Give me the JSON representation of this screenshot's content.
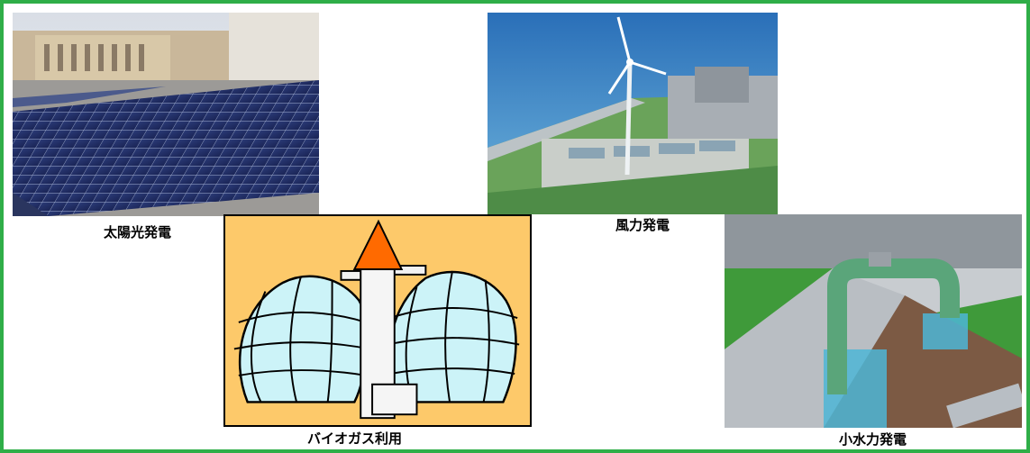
{
  "captions": {
    "solar": "太陽光発電",
    "wind": "風力発電",
    "biogas": "バイオガス利用",
    "hydro": "小水力発電"
  },
  "colors": {
    "frame_border": "#2fae48",
    "biogas_background": "#fdc96a",
    "biogas_dome": "#ccf3f8",
    "biogas_roof": "#ff6a00"
  }
}
